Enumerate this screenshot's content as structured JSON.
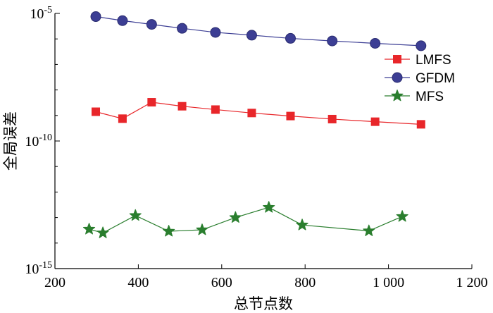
{
  "chart_data": {
    "type": "line",
    "xlabel": "总节点数",
    "ylabel": "全局误差",
    "y_scale": "log",
    "xlim": [
      200,
      1200
    ],
    "ylim": [
      1e-15,
      1e-05
    ],
    "x_ticks": [
      {
        "value": 200,
        "label": "200"
      },
      {
        "value": 400,
        "label": "400"
      },
      {
        "value": 600,
        "label": "600"
      },
      {
        "value": 800,
        "label": "800"
      },
      {
        "value": 1000,
        "label": "1 000"
      },
      {
        "value": 1200,
        "label": "1 200"
      }
    ],
    "y_ticks": [
      {
        "value": 1e-05,
        "mant": "10",
        "exp": "-5"
      },
      {
        "value": 1e-10,
        "mant": "10",
        "exp": "-10"
      },
      {
        "value": 1e-15,
        "mant": "10",
        "exp": "-15"
      }
    ],
    "legend_position": "top-right",
    "grid": false,
    "series": [
      {
        "name": "LMFS",
        "color": "#e8262a",
        "marker": "square",
        "x": [
          298,
          362,
          432,
          505,
          585,
          672,
          765,
          865,
          968,
          1078
        ],
        "y": [
          1.4e-09,
          7.5e-10,
          3.3e-09,
          2.3e-09,
          1.7e-09,
          1.25e-09,
          9.5e-10,
          7.2e-10,
          5.7e-10,
          4.5e-10
        ]
      },
      {
        "name": "GFDM",
        "color": "#3c3e94",
        "marker": "circle",
        "x": [
          298,
          362,
          432,
          505,
          585,
          672,
          765,
          865,
          968,
          1078
        ],
        "y": [
          7.5e-06,
          5.2e-06,
          3.7e-06,
          2.6e-06,
          1.8e-06,
          1.4e-06,
          1.05e-06,
          8.3e-07,
          6.7e-07,
          5.4e-07
        ]
      },
      {
        "name": "MFS",
        "color": "#2a7e2e",
        "marker": "star",
        "x": [
          282,
          315,
          393,
          473,
          553,
          633,
          713,
          793,
          953,
          1033
        ],
        "y": [
          3.5e-14,
          2.5e-14,
          1.2e-13,
          2.9e-14,
          3.3e-14,
          1e-13,
          2.5e-13,
          5.1e-14,
          3e-14,
          1.1e-13
        ]
      }
    ]
  }
}
